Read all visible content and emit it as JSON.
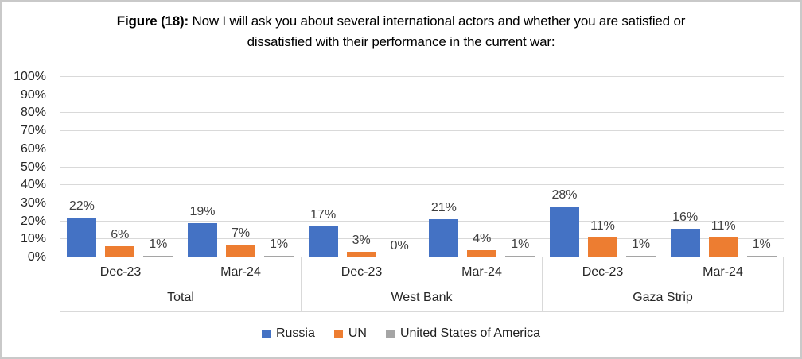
{
  "window": {
    "background": "#FFFFFF",
    "border_color": "#C9C9C9"
  },
  "title": {
    "prefix": "Figure (18):",
    "rest": " Now I will ask you about several international actors and whether you are satisfied or dissatisfied with their performance in the current war:"
  },
  "chart_data": {
    "type": "bar",
    "title": "Figure (18): Now I will ask you about several international actors and whether you are satisfied or dissatisfied with their performance in the current war:",
    "groups": [
      "Total",
      "West Bank",
      "Gaza Strip"
    ],
    "periods": [
      "Dec-23",
      "Mar-24"
    ],
    "categories": [
      "Total Dec-23",
      "Total Mar-24",
      "West Bank Dec-23",
      "West Bank Mar-24",
      "Gaza Strip Dec-23",
      "Gaza Strip Mar-24"
    ],
    "series": [
      {
        "name": "Russia",
        "color": "#4472C4",
        "values": [
          22,
          19,
          17,
          21,
          28,
          16
        ]
      },
      {
        "name": "UN",
        "color": "#ED7D31",
        "values": [
          6,
          7,
          3,
          4,
          11,
          11
        ]
      },
      {
        "name": "United States of America",
        "color": "#A5A5A5",
        "values": [
          1,
          1,
          0,
          1,
          1,
          1
        ]
      }
    ],
    "value_suffix": "%",
    "y_axis": {
      "min": 0,
      "max": 100,
      "step": 10,
      "ticks": [
        "0%",
        "10%",
        "20%",
        "30%",
        "40%",
        "50%",
        "60%",
        "70%",
        "80%",
        "90%",
        "100%"
      ]
    },
    "grid": true,
    "data_labels": "outside-end",
    "legend_position": "bottom",
    "colors": {
      "gridline": "#D9D9D9",
      "axis_line": "#BFBFBF",
      "data_label": "#404040",
      "tick_label": "#262626"
    }
  }
}
